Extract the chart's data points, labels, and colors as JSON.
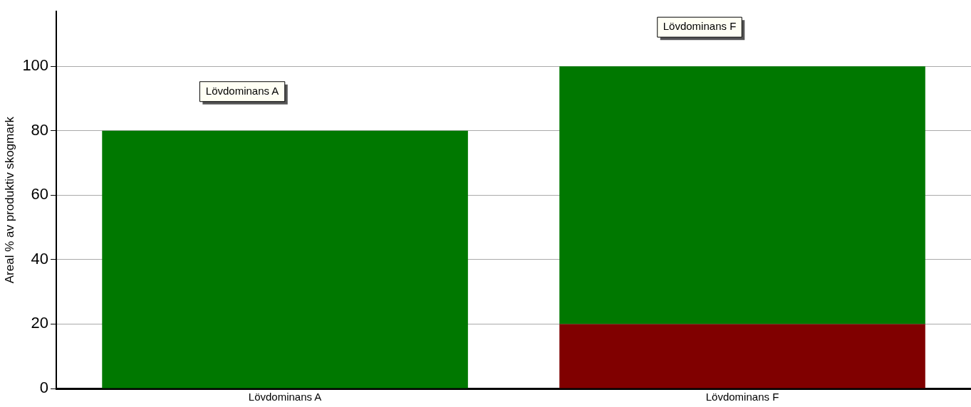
{
  "chart_data": {
    "type": "bar",
    "stacked": true,
    "ylabel": "Areal % av produktiv skogmark",
    "categories": [
      "Lövdominans A",
      "Lövdominans F"
    ],
    "series": [
      {
        "color": "#800000",
        "values": [
          null,
          20
        ]
      },
      {
        "color": "#007800",
        "values": [
          80,
          80
        ]
      }
    ],
    "ylim": [
      0,
      117
    ],
    "yticks": [
      0,
      20,
      40,
      60,
      80,
      100
    ],
    "grid": "y",
    "legend": false,
    "annotations": [
      "Lövdominans A",
      "Lövdominans F"
    ]
  }
}
